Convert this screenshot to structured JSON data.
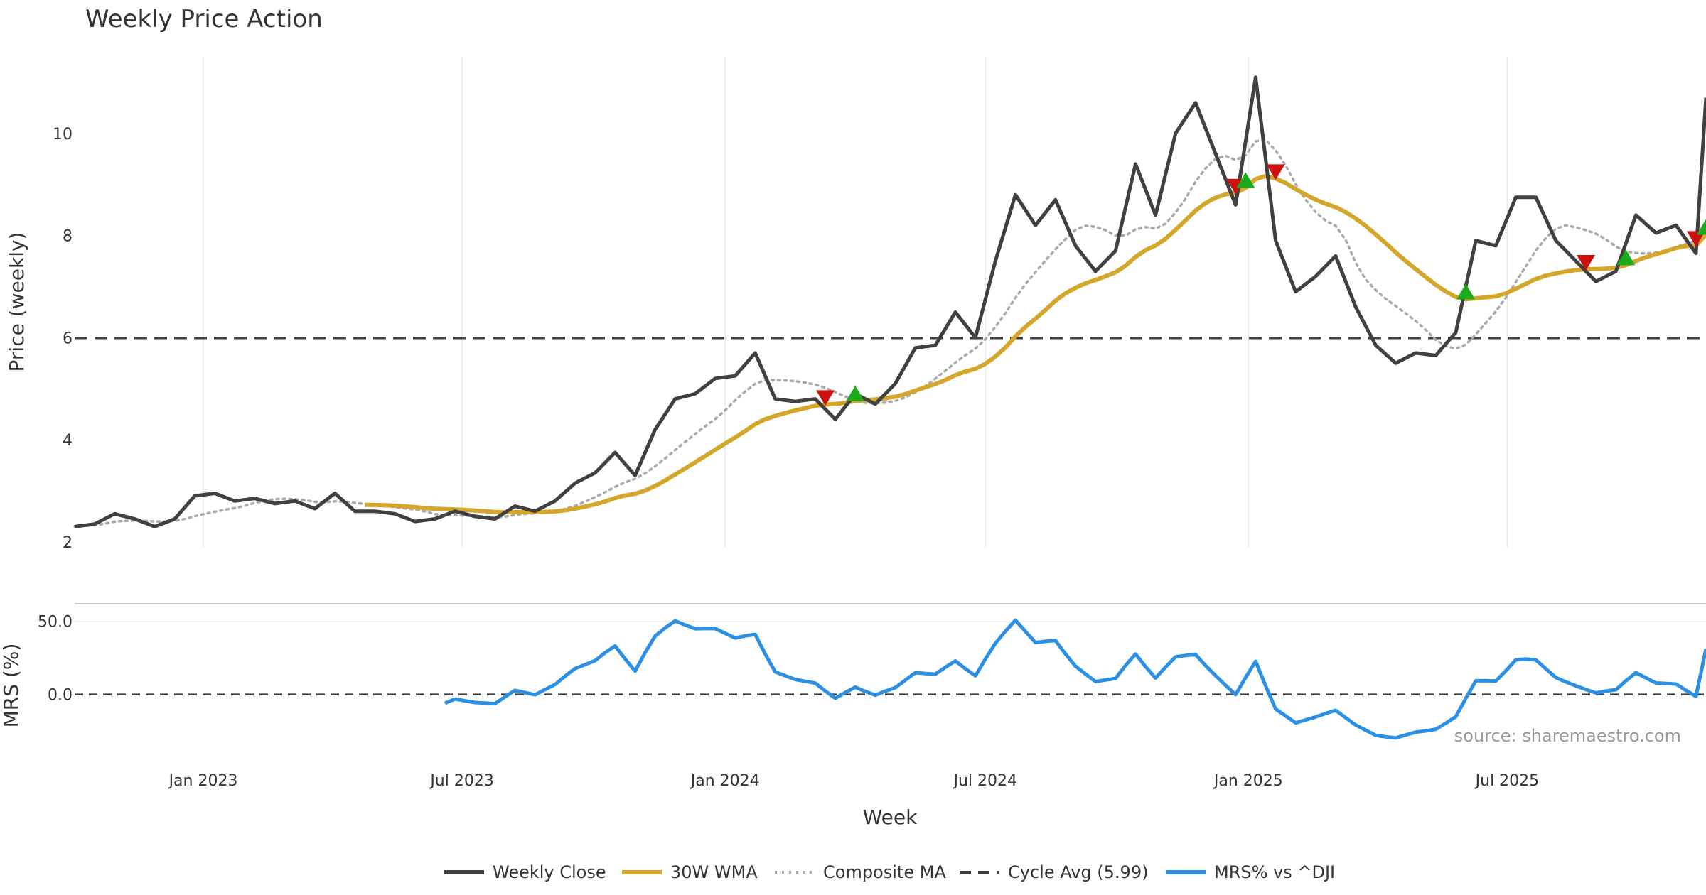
{
  "chart_data": {
    "type": "line",
    "title": "Weekly Price Action",
    "source": "source: sharemaestro.com",
    "xlabel": "Week",
    "x_ticks": [
      "Jan 2023",
      "Jul 2023",
      "Jan 2024",
      "Jul 2024",
      "Jan 2025",
      "Jul 2025"
    ],
    "price_panel": {
      "ylabel": "Price (weekly)",
      "y_ticks": [
        "2",
        "4",
        "6",
        "8",
        "10"
      ],
      "ylim": [
        1.9,
        11.5
      ],
      "cycle_avg": 5.99
    },
    "mrs_panel": {
      "ylabel": "MRS (%)",
      "y_ticks": [
        "0.0",
        "50.0"
      ],
      "ylim": [
        -40,
        62
      ],
      "zero_line": 0
    },
    "grid": true,
    "legend_position": "bottom",
    "legend": [
      {
        "label": "Weekly Close",
        "color": "#404040",
        "style": "solid"
      },
      {
        "label": "30W WMA",
        "color": "#d4a62a",
        "style": "solid"
      },
      {
        "label": "Composite MA",
        "color": "#aaaaaa",
        "style": "dotted"
      },
      {
        "label": "Cycle Avg (5.99)",
        "color": "#404040",
        "style": "dashed"
      },
      {
        "label": "MRS% vs ^DJI",
        "color": "#2b8fe3",
        "style": "solid"
      }
    ],
    "x_start": "2022-10-03",
    "x_end": "2025-11-17",
    "series": [
      {
        "name": "Weekly Close",
        "color": "#404040",
        "points": [
          [
            "2022-10-03",
            2.3
          ],
          [
            "2022-10-17",
            2.35
          ],
          [
            "2022-10-31",
            2.55
          ],
          [
            "2022-11-14",
            2.45
          ],
          [
            "2022-11-28",
            2.3
          ],
          [
            "2022-12-12",
            2.45
          ],
          [
            "2022-12-26",
            2.9
          ],
          [
            "2023-01-09",
            2.95
          ],
          [
            "2023-01-23",
            2.8
          ],
          [
            "2023-02-06",
            2.85
          ],
          [
            "2023-02-20",
            2.75
          ],
          [
            "2023-03-06",
            2.8
          ],
          [
            "2023-03-20",
            2.65
          ],
          [
            "2023-04-03",
            2.95
          ],
          [
            "2023-04-17",
            2.6
          ],
          [
            "2023-05-01",
            2.6
          ],
          [
            "2023-05-15",
            2.55
          ],
          [
            "2023-05-29",
            2.4
          ],
          [
            "2023-06-12",
            2.45
          ],
          [
            "2023-06-26",
            2.6
          ],
          [
            "2023-07-10",
            2.5
          ],
          [
            "2023-07-24",
            2.45
          ],
          [
            "2023-08-07",
            2.7
          ],
          [
            "2023-08-21",
            2.6
          ],
          [
            "2023-09-04",
            2.8
          ],
          [
            "2023-09-18",
            3.15
          ],
          [
            "2023-10-02",
            3.35
          ],
          [
            "2023-10-16",
            3.75
          ],
          [
            "2023-10-30",
            3.3
          ],
          [
            "2023-11-13",
            4.2
          ],
          [
            "2023-11-27",
            4.8
          ],
          [
            "2023-12-11",
            4.9
          ],
          [
            "2023-12-25",
            5.2
          ],
          [
            "2024-01-08",
            5.25
          ],
          [
            "2024-01-22",
            5.7
          ],
          [
            "2024-02-05",
            4.8
          ],
          [
            "2024-02-19",
            4.75
          ],
          [
            "2024-03-04",
            4.8
          ],
          [
            "2024-03-18",
            4.4
          ],
          [
            "2024-04-01",
            4.9
          ],
          [
            "2024-04-15",
            4.7
          ],
          [
            "2024-04-29",
            5.1
          ],
          [
            "2024-05-13",
            5.8
          ],
          [
            "2024-05-27",
            5.85
          ],
          [
            "2024-06-10",
            6.5
          ],
          [
            "2024-06-24",
            6.0
          ],
          [
            "2024-07-08",
            7.5
          ],
          [
            "2024-07-22",
            8.8
          ],
          [
            "2024-08-05",
            8.2
          ],
          [
            "2024-08-19",
            8.7
          ],
          [
            "2024-09-02",
            7.8
          ],
          [
            "2024-09-16",
            7.3
          ],
          [
            "2024-09-30",
            7.7
          ],
          [
            "2024-10-14",
            9.4
          ],
          [
            "2024-10-28",
            8.4
          ],
          [
            "2024-11-11",
            10.0
          ],
          [
            "2024-11-25",
            10.6
          ],
          [
            "2024-12-09",
            9.6
          ],
          [
            "2024-12-23",
            8.6
          ],
          [
            "2025-01-06",
            11.1
          ],
          [
            "2025-01-20",
            7.9
          ],
          [
            "2025-02-03",
            6.9
          ],
          [
            "2025-02-17",
            7.2
          ],
          [
            "2025-03-03",
            7.6
          ],
          [
            "2025-03-17",
            6.6
          ],
          [
            "2025-03-31",
            5.85
          ],
          [
            "2025-04-14",
            5.5
          ],
          [
            "2025-04-28",
            5.7
          ],
          [
            "2025-05-12",
            5.65
          ],
          [
            "2025-05-26",
            6.1
          ],
          [
            "2025-06-09",
            7.9
          ],
          [
            "2025-06-23",
            7.8
          ],
          [
            "2025-07-07",
            8.75
          ],
          [
            "2025-07-21",
            8.75
          ],
          [
            "2025-08-04",
            7.9
          ],
          [
            "2025-08-18",
            7.5
          ],
          [
            "2025-09-01",
            7.1
          ],
          [
            "2025-09-15",
            7.3
          ],
          [
            "2025-09-29",
            8.4
          ],
          [
            "2025-10-13",
            8.05
          ],
          [
            "2025-10-27",
            8.2
          ],
          [
            "2025-11-10",
            7.65
          ],
          [
            "2025-11-17",
            10.7
          ]
        ]
      }
    ]
  }
}
